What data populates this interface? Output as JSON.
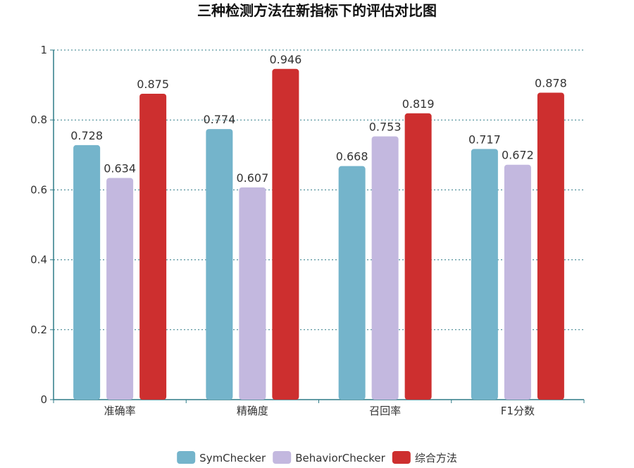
{
  "chart_data": {
    "type": "bar",
    "title": "三种检测方法在新指标下的评估对比图",
    "categories": [
      "准确率",
      "精确度",
      "召回率",
      "F1分数"
    ],
    "series": [
      {
        "name": "SymChecker",
        "color": "#74b4cb",
        "values": [
          0.728,
          0.774,
          0.668,
          0.717
        ]
      },
      {
        "name": "BehaviorChecker",
        "color": "#c3b8df",
        "values": [
          0.634,
          0.607,
          0.753,
          0.672
        ]
      },
      {
        "name": "综合方法",
        "color": "#cd2f2f",
        "values": [
          0.875,
          0.946,
          0.819,
          0.878
        ]
      }
    ],
    "ylim": [
      0,
      1
    ],
    "yticks": [
      0,
      0.2,
      0.4,
      0.6,
      0.8,
      1
    ],
    "ytick_labels": [
      "0",
      "0.2",
      "0.4",
      "0.6",
      "0.8",
      "1"
    ],
    "grid": true,
    "legend_position": "bottom-center",
    "axis_color": "#2e7b87"
  }
}
